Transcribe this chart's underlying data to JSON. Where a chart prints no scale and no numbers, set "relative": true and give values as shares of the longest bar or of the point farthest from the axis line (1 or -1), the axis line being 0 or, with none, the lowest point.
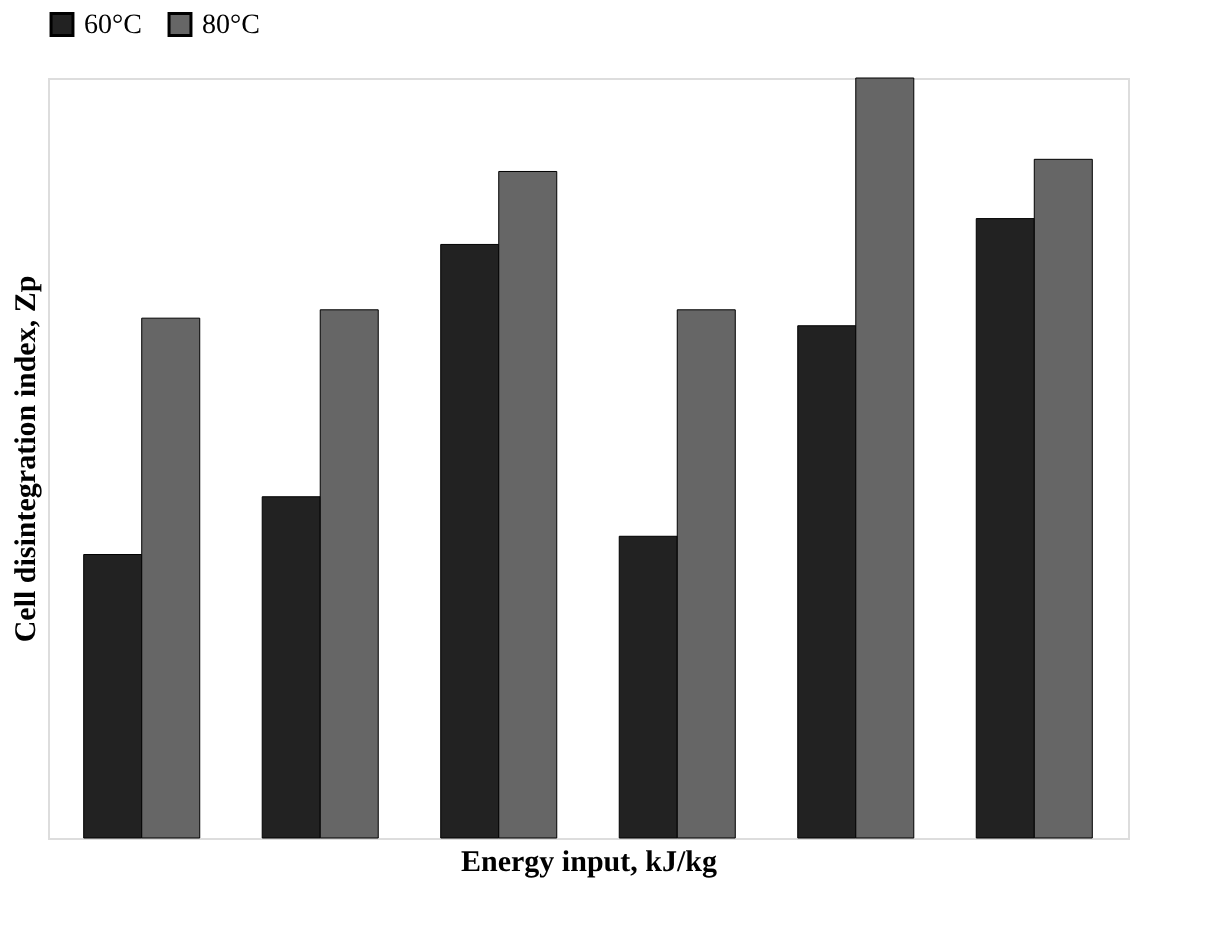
{
  "chart_data": {
    "type": "bar",
    "relative": true,
    "xlabel": "Energy input, kJ/kg",
    "ylabel": "Cell disintegration index, Zp",
    "categories": [
      null,
      null,
      null,
      null,
      null,
      null
    ],
    "series": [
      {
        "name": "60°C",
        "color": "#222222",
        "values": [
          0.373,
          0.449,
          0.781,
          0.397,
          0.674,
          0.815
        ]
      },
      {
        "name": "80°C",
        "color": "#666666",
        "values": [
          0.684,
          0.695,
          0.877,
          0.695,
          1,
          0.893
        ]
      }
    ],
    "legend": "top",
    "tick_labels": false,
    "grid": false
  }
}
